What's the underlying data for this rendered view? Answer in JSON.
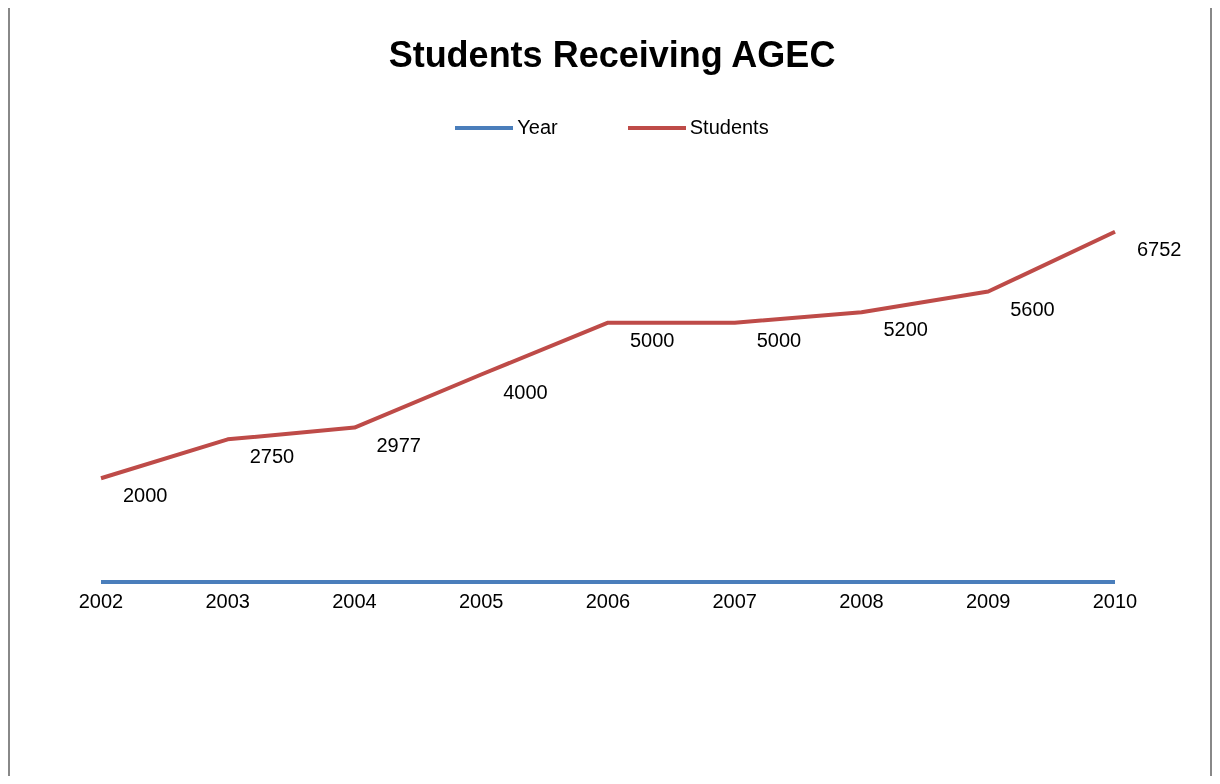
{
  "chart_data": {
    "type": "line",
    "title": "Students Receiving AGEC",
    "categories": [
      "2002",
      "2003",
      "2004",
      "2005",
      "2006",
      "2007",
      "2008",
      "2009",
      "2010"
    ],
    "series": [
      {
        "name": "Year",
        "color": "#4a7ebb",
        "values": [
          0,
          0,
          0,
          0,
          0,
          0,
          0,
          0,
          0
        ]
      },
      {
        "name": "Students",
        "color": "#be4b48",
        "values": [
          2000,
          2750,
          2977,
          4000,
          5000,
          5000,
          5200,
          5600,
          6752
        ],
        "value_labels": [
          "2000",
          "2750",
          "2977",
          "4000",
          "5000",
          "5000",
          "5200",
          "5600",
          "6752"
        ]
      }
    ],
    "legend": "top",
    "grid": false,
    "marker": "none"
  }
}
